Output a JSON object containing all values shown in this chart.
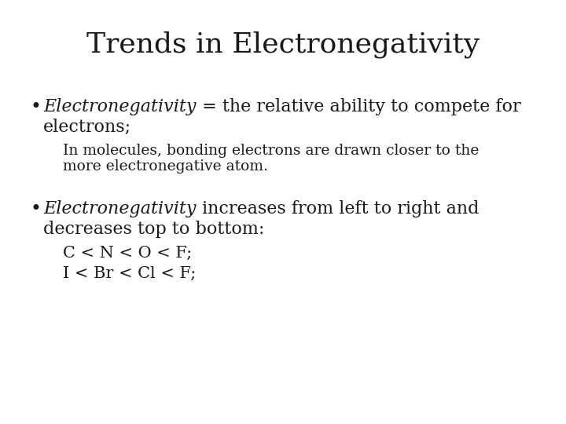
{
  "title": "Trends in Electronegativity",
  "background_color": "#ffffff",
  "title_fontsize": 26,
  "body_fontsize": 16,
  "sub_fontsize": 13.5,
  "sub2_fontsize": 15,
  "text_color": "#1a1a1a",
  "font_family": "DejaVu Serif",
  "bullet1_italic": "Electronegativity",
  "bullet1_normal": " = the relative ability to compete for",
  "bullet1_line2": "electrons;",
  "sub1_line1": "In molecules, bonding electrons are drawn closer to the",
  "sub1_line2": "more electronegative atom.",
  "bullet2_italic": "Electronegativity",
  "bullet2_normal": " increases from left to right and",
  "bullet2_line2": "decreases top to bottom:",
  "sub2a": "C < N < O < F;",
  "sub2b": "I < Br < Cl < F;"
}
